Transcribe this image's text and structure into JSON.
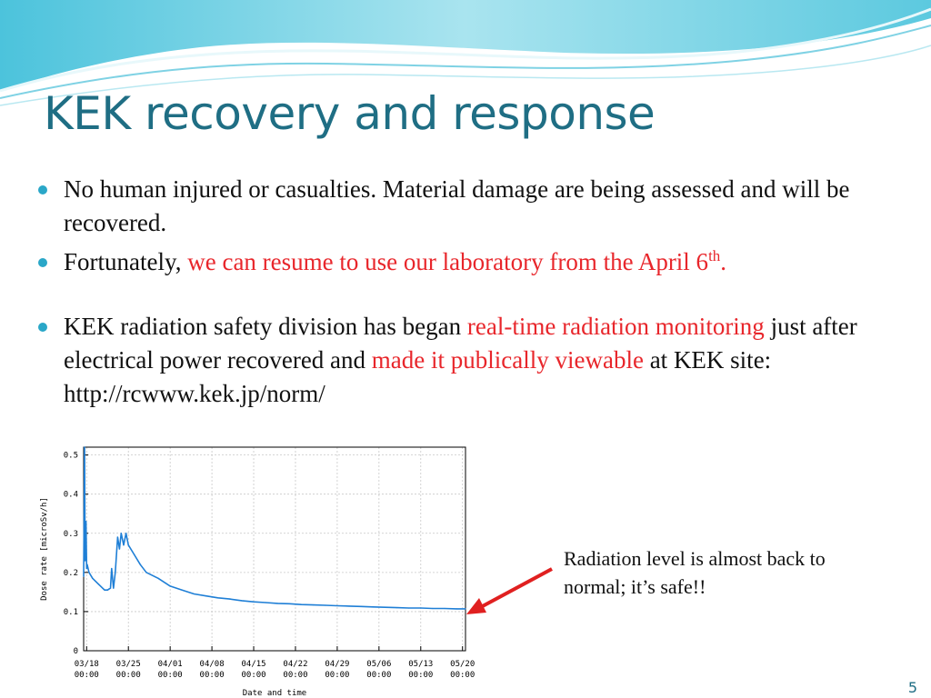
{
  "slide": {
    "title": "KEK recovery and response",
    "page_number": "5",
    "colors": {
      "title": "#1f6e84",
      "highlight": "#e8262b",
      "bullet": "#2aa7c8",
      "line": "#1f7fd6",
      "arrow": "#e02020"
    }
  },
  "bullets": [
    {
      "parts": [
        {
          "text": "No human injured or casualties. Material damage are being assessed and will be recovered.",
          "highlight": false
        }
      ]
    },
    {
      "parts": [
        {
          "text": "Fortunately, ",
          "highlight": false
        },
        {
          "text": "we can resume to use our laboratory from the April 6",
          "highlight": true
        },
        {
          "text": "th",
          "highlight": true,
          "superscript": true
        },
        {
          "text": ".",
          "highlight": true
        }
      ]
    },
    {
      "parts": [
        {
          "text": "KEK radiation safety division has began ",
          "highlight": false
        },
        {
          "text": "real-time radiation monitoring",
          "highlight": true
        },
        {
          "text": " just after electrical power recovered and ",
          "highlight": false
        },
        {
          "text": "made it publically viewable",
          "highlight": true
        },
        {
          "text": " at KEK site: http://rcwww.kek.jp/norm/",
          "highlight": false
        }
      ]
    }
  ],
  "callout": {
    "text": "Radiation level is almost back to normal; it’s safe!!"
  },
  "chart_data": {
    "type": "line",
    "title": "",
    "xlabel": "Date and time",
    "ylabel": "Dose rate [microSv/h]",
    "ylim": [
      0,
      0.52
    ],
    "yticks": [
      0,
      0.1,
      0.2,
      0.3,
      0.4,
      0.5
    ],
    "ytick_labels": [
      "0",
      "0.1",
      "0.2",
      "0.3",
      "0.4",
      "0.5"
    ],
    "xlim": [
      -0.5,
      63.5
    ],
    "xticks": [
      0,
      7,
      14,
      21,
      28,
      35,
      42,
      49,
      56,
      63
    ],
    "xtick_labels": [
      [
        "03/18",
        "00:00"
      ],
      [
        "03/25",
        "00:00"
      ],
      [
        "04/01",
        "00:00"
      ],
      [
        "04/08",
        "00:00"
      ],
      [
        "04/15",
        "00:00"
      ],
      [
        "04/22",
        "00:00"
      ],
      [
        "04/29",
        "00:00"
      ],
      [
        "05/06",
        "00:00"
      ],
      [
        "05/13",
        "00:00"
      ],
      [
        "05/20",
        "00:00"
      ]
    ],
    "grid": true,
    "series": [
      {
        "x": [
          -0.5,
          -0.35,
          -0.25,
          -0.1,
          0,
          0.1,
          0.4,
          1,
          2,
          3,
          3.5,
          4,
          4.2,
          4.5,
          4.8,
          5.2,
          5.5,
          5.8,
          6.2,
          6.6,
          7,
          8,
          9,
          10,
          12,
          14,
          16,
          18,
          20,
          22,
          24,
          26,
          28,
          30,
          32,
          34,
          36,
          38,
          40,
          42,
          44,
          46,
          48,
          50,
          52,
          54,
          56,
          58,
          60,
          62,
          63.5
        ],
        "y": [
          0.19,
          0.52,
          0.23,
          0.33,
          0.21,
          0.22,
          0.2,
          0.185,
          0.17,
          0.155,
          0.155,
          0.16,
          0.21,
          0.16,
          0.2,
          0.29,
          0.26,
          0.3,
          0.27,
          0.3,
          0.27,
          0.245,
          0.22,
          0.2,
          0.185,
          0.165,
          0.155,
          0.145,
          0.14,
          0.135,
          0.132,
          0.128,
          0.125,
          0.123,
          0.121,
          0.12,
          0.118,
          0.117,
          0.116,
          0.115,
          0.114,
          0.113,
          0.112,
          0.111,
          0.11,
          0.109,
          0.109,
          0.108,
          0.108,
          0.107,
          0.107
        ]
      }
    ]
  }
}
